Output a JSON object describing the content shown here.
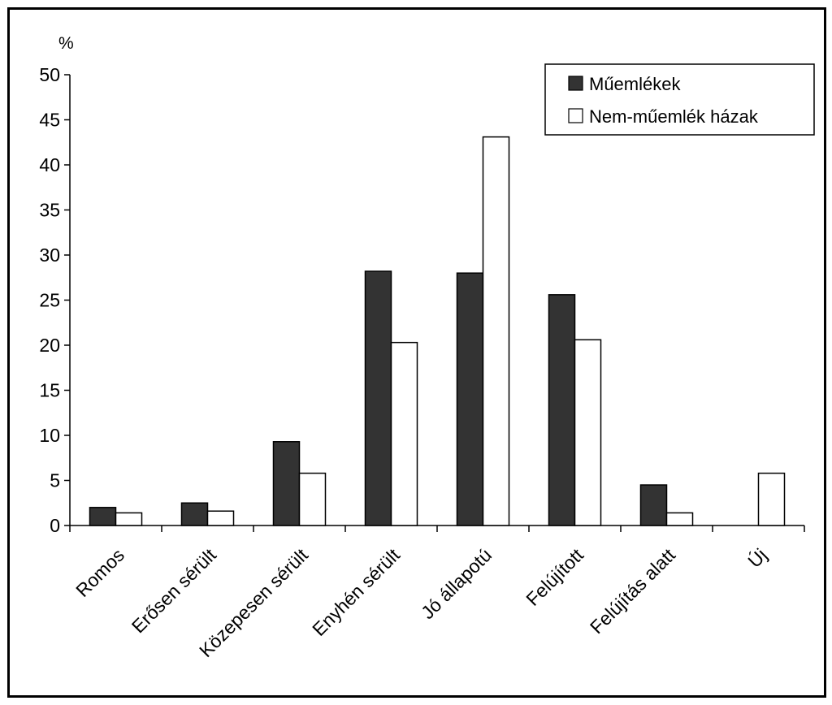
{
  "chart_data": {
    "type": "bar",
    "y_unit_label": "%",
    "categories": [
      "Romos",
      "Erősen sérült",
      "Közepesen sérült",
      "Enyhén sérült",
      "Jó állapotú",
      "Felújított",
      "Felújítás alatt",
      "Új"
    ],
    "series": [
      {
        "name": "Műemlékek",
        "color": "#333333",
        "values": [
          2.0,
          2.5,
          9.3,
          28.2,
          28.0,
          25.6,
          4.5,
          0
        ]
      },
      {
        "name": "Nem-műemlék házak",
        "color": "#ffffff",
        "values": [
          1.4,
          1.6,
          5.8,
          20.3,
          43.1,
          20.6,
          1.4,
          5.8
        ]
      }
    ],
    "ylim": [
      0,
      50
    ],
    "yticks": [
      0,
      5,
      10,
      15,
      20,
      25,
      30,
      35,
      40,
      45,
      50
    ],
    "legend_position": "top-right",
    "grid": false
  }
}
